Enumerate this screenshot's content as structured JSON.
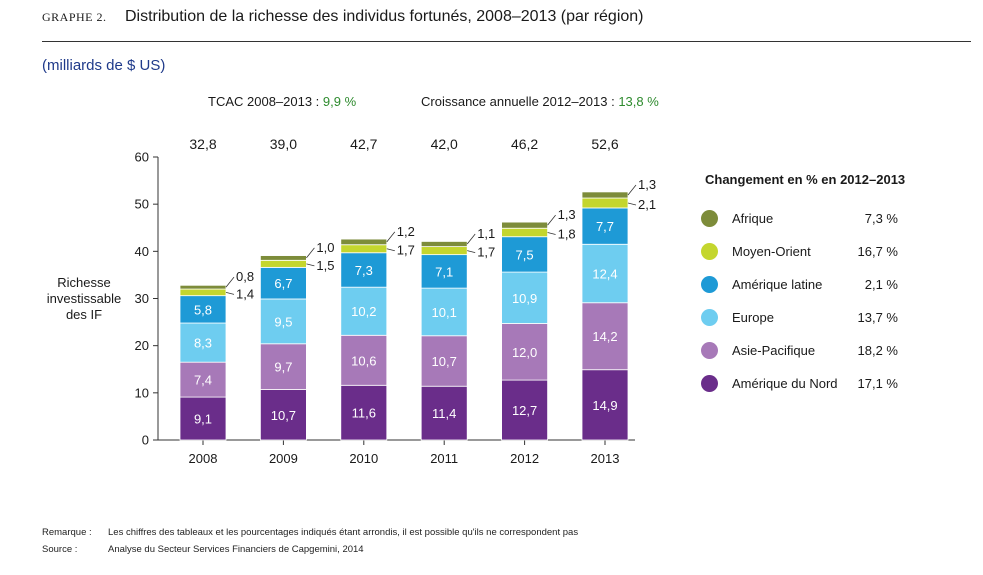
{
  "header": {
    "graph_number": "GRAPHE 2.",
    "title": "Distribution de la richesse des individus fortunés, 2008–2013 (par région)"
  },
  "units": "(milliards de $ US)",
  "stats": {
    "cagr_label": "TCAC 2008–2013 :",
    "cagr_value": "9,9 %",
    "growth_label": "Croissance annuelle 2012–2013 :",
    "growth_value": "13,8 %"
  },
  "chart_data": {
    "type": "bar",
    "stacked": true,
    "categories": [
      "2008",
      "2009",
      "2010",
      "2011",
      "2012",
      "2013"
    ],
    "totals": [
      "32,8",
      "39,0",
      "42,7",
      "42,0",
      "46,2",
      "52,6"
    ],
    "ylabel": "Richesse\ninvestissable\ndes IF",
    "ylim": [
      0,
      60
    ],
    "yticks": [
      0,
      10,
      20,
      30,
      40,
      50,
      60
    ],
    "grid": false,
    "series": [
      {
        "name": "Amérique du Nord",
        "color": "#6a2d8a",
        "values": [
          9.1,
          10.7,
          11.6,
          11.4,
          12.7,
          14.9
        ],
        "labels": [
          "9,1",
          "10,7",
          "11,6",
          "11,4",
          "12,7",
          "14,9"
        ]
      },
      {
        "name": "Asie-Pacifique",
        "color": "#a779b8",
        "values": [
          7.4,
          9.7,
          10.6,
          10.7,
          12.0,
          14.2
        ],
        "labels": [
          "7,4",
          "9,7",
          "10,6",
          "10,7",
          "12,0",
          "14,2"
        ]
      },
      {
        "name": "Europe",
        "color": "#6ecdf0",
        "values": [
          8.3,
          9.5,
          10.2,
          10.1,
          10.9,
          12.4
        ],
        "labels": [
          "8,3",
          "9,5",
          "10,2",
          "10,1",
          "10,9",
          "12,4"
        ]
      },
      {
        "name": "Amérique latine",
        "color": "#1e9ad6",
        "values": [
          5.8,
          6.7,
          7.3,
          7.1,
          7.5,
          7.7
        ],
        "labels": [
          "5,8",
          "6,7",
          "7,3",
          "7,1",
          "7,5",
          "7,7"
        ]
      },
      {
        "name": "Moyen-Orient",
        "color": "#c4d62e",
        "values": [
          1.4,
          1.5,
          1.7,
          1.7,
          1.8,
          2.1
        ],
        "labels": [
          "1,4",
          "1,5",
          "1,7",
          "1,7",
          "1,8",
          "2,1"
        ]
      },
      {
        "name": "Afrique",
        "color": "#7d8c3a",
        "values": [
          0.8,
          1.0,
          1.2,
          1.1,
          1.3,
          1.3
        ],
        "labels": [
          "0,8",
          "1,0",
          "1,2",
          "1,1",
          "1,3",
          "1,3"
        ]
      }
    ]
  },
  "legend": {
    "title": "Changement en % en 2012–2013",
    "items": [
      {
        "name": "Afrique",
        "pct": "7,3 %",
        "color": "#7d8c3a"
      },
      {
        "name": "Moyen-Orient",
        "pct": "16,7 %",
        "color": "#c4d62e"
      },
      {
        "name": "Amérique latine",
        "pct": "2,1 %",
        "color": "#1e9ad6"
      },
      {
        "name": "Europe",
        "pct": "13,7 %",
        "color": "#6ecdf0"
      },
      {
        "name": "Asie-Pacifique",
        "pct": "18,2 %",
        "color": "#a779b8"
      },
      {
        "name": "Amérique du Nord",
        "pct": "17,1 %",
        "color": "#6a2d8a"
      }
    ]
  },
  "footer": {
    "remark_label": "Remarque :",
    "remark_text": "Les chiffres des tableaux et les pourcentages indiqués étant arrondis, il est possible qu'ils ne correspondent pas",
    "source_label": "Source :",
    "source_text": "Analyse du Secteur Services Financiers de Capgemini, 2014"
  }
}
